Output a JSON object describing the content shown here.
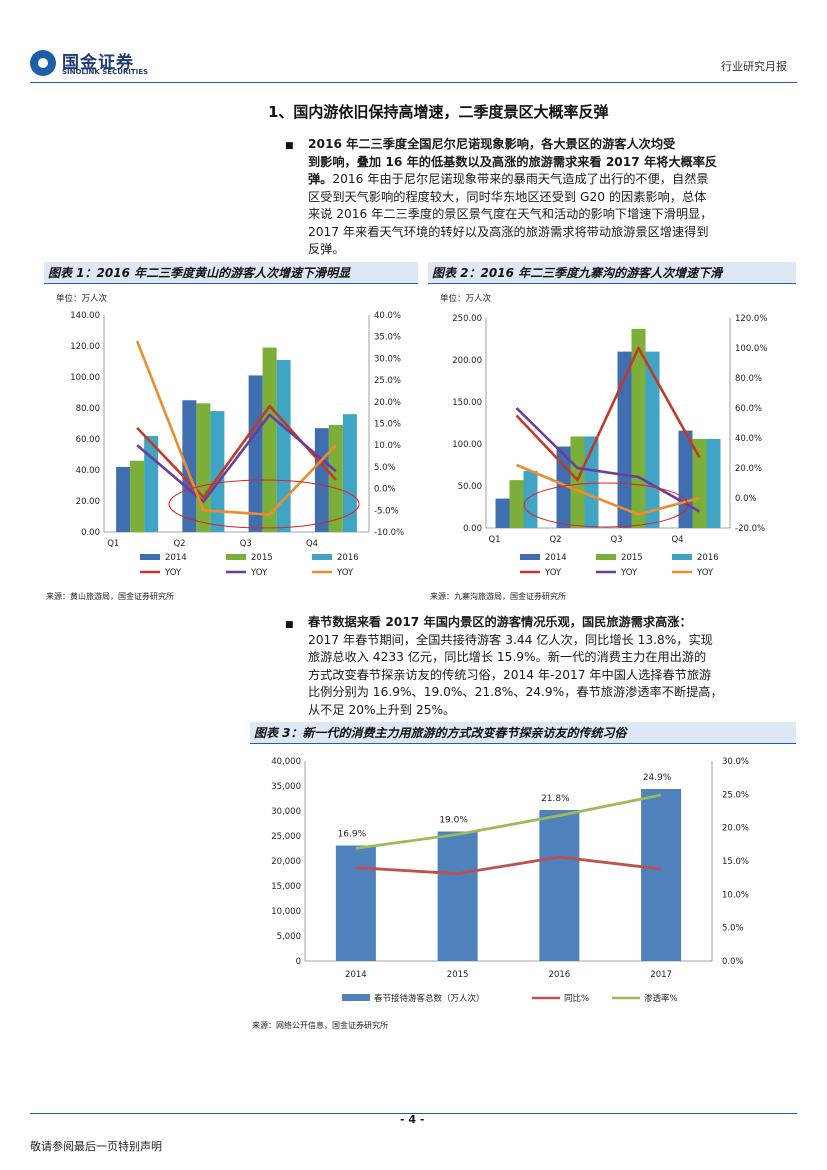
{
  "header": {
    "company_cn": "国金证券",
    "company_en": "SINOLINK SECURITIES",
    "report_type": "行业研究月报",
    "brand_color": "#1f5fa8"
  },
  "section_title": "1、国内游依旧保持高增速，二季度景区大概率反弹",
  "bullet_glyph": "■",
  "para1": {
    "lines_bold": [
      "2016 年二三季度全国尼尔尼诺现象影响，各大景区的游客人次均受",
      "到影响，叠加 16 年的低基数以及高涨的旅游需求来看 2017 年将大概率反",
      "弹。"
    ],
    "lines": [
      "2016 年由于尼尔尼诺现象带来的暴雨天气造成了出行的不便，自然景",
      "区受到天气影响的程度较大，同时华东地区还受到 G20 的因素影响，总体",
      "来说 2016 年二三季度的景区景气度在天气和活动的影响下增速下滑明显，",
      "2017 年来看天气环境的转好以及高涨的旅游需求将带动旅游景区增速得到",
      "反弹。"
    ]
  },
  "fig1": {
    "title": "图表 1：2016 年二三季度黄山的游客人次增速下滑明显",
    "source": "来源：黄山旅游局，国金证券研究所"
  },
  "fig2": {
    "title": "图表 2：2016 年二三季度九寨沟的游客人次增速下滑",
    "source": "来源：九寨沟旅游局，国金证券研究所"
  },
  "para2": {
    "lead": "春节数据来看 2017 年国内景区的游客情况乐观，国民旅游需求高涨：",
    "lines": [
      "2017 年春节期间，全国共接待游客 3.44 亿人次，同比增长 13.8%，实现",
      "旅游总收入 4233 亿元，同比增长 15.9%。新一代的消费主力在用出游的",
      "方式改变春节探亲访友的传统习俗，2014 年-2017 年中国人选择春节旅游",
      "比例分别为 16.9%、19.0%、21.8%、24.9%，春节旅游渗透率不断提高，",
      "从不足 20%上升到 25%。"
    ]
  },
  "fig3": {
    "title": "图表 3：新一代的消费主力用旅游的方式改变春节探亲访友的传统习俗",
    "source": "来源：网络公开信息，国金证券研究所"
  },
  "chart_data": [
    {
      "type": "bar",
      "id": "huangshan",
      "unit_label": "单位：万人次",
      "categories": [
        "Q1",
        "Q2",
        "Q3",
        "Q4"
      ],
      "ylim": [
        0,
        140
      ],
      "y_ticks": [
        "0.00",
        "20.00",
        "40.00",
        "60.00",
        "80.00",
        "100.00",
        "120.00",
        "140.00"
      ],
      "y2lim": [
        -10,
        40
      ],
      "y2_ticks": [
        "-10.0%",
        "-5.0%",
        "0.0%",
        "5.0%",
        "10.0%",
        "15.0%",
        "20.0%",
        "25.0%",
        "30.0%",
        "35.0%",
        "40.0%"
      ],
      "series": [
        {
          "name": "2014",
          "kind": "bar",
          "color": "#3f6fb1",
          "values": [
            42,
            85,
            101,
            67
          ]
        },
        {
          "name": "2015",
          "kind": "bar",
          "color": "#7cae3a",
          "values": [
            46,
            83,
            119,
            69
          ]
        },
        {
          "name": "2016",
          "kind": "bar",
          "color": "#40a4c4",
          "values": [
            62,
            78,
            111,
            76
          ]
        },
        {
          "name": "YOY",
          "kind": "line",
          "color": "#c0392b",
          "values": [
            14,
            -2,
            19,
            2
          ]
        },
        {
          "name": "YOY",
          "kind": "line",
          "color": "#6a3d9a",
          "values": [
            10,
            -3,
            17,
            4
          ]
        },
        {
          "name": "YOY",
          "kind": "line",
          "color": "#ee8b2d",
          "values": [
            34,
            -5,
            -6,
            10
          ]
        }
      ],
      "legend": "bottom",
      "highlight": "red ellipse"
    },
    {
      "type": "bar",
      "id": "jiuzhaigou",
      "unit_label": "单位：万人次",
      "categories": [
        "Q1",
        "Q2",
        "Q3",
        "Q4"
      ],
      "ylim": [
        0,
        250
      ],
      "y_ticks": [
        "0.00",
        "50.00",
        "100.00",
        "150.00",
        "200.00",
        "250.00"
      ],
      "y2lim": [
        -20,
        120
      ],
      "y2_ticks": [
        "-20.0%",
        "0.0%",
        "20.0%",
        "40.0%",
        "60.0%",
        "80.0%",
        "100.0%",
        "120.0%"
      ],
      "series": [
        {
          "name": "2014",
          "kind": "bar",
          "color": "#3f6fb1",
          "values": [
            35,
            97,
            210,
            116
          ]
        },
        {
          "name": "2015",
          "kind": "bar",
          "color": "#7cae3a",
          "values": [
            57,
            109,
            237,
            106
          ]
        },
        {
          "name": "2016",
          "kind": "bar",
          "color": "#40a4c4",
          "values": [
            68,
            109,
            210,
            106
          ]
        },
        {
          "name": "YOY",
          "kind": "line",
          "color": "#c0392b",
          "values": [
            55,
            12,
            100,
            27
          ]
        },
        {
          "name": "YOY",
          "kind": "line",
          "color": "#6a3d9a",
          "values": [
            60,
            20,
            14,
            -9
          ]
        },
        {
          "name": "YOY",
          "kind": "line",
          "color": "#ee8b2d",
          "values": [
            22,
            5,
            -11,
            0
          ]
        }
      ],
      "legend": "bottom",
      "highlight": "red ellipse"
    },
    {
      "type": "bar",
      "id": "spring_festival",
      "categories": [
        "2014",
        "2015",
        "2016",
        "2017"
      ],
      "ylim": [
        0,
        40000
      ],
      "y_ticks": [
        "0",
        "5,000",
        "10,000",
        "15,000",
        "20,000",
        "25,000",
        "30,000",
        "35,000",
        "40,000"
      ],
      "y2lim": [
        0,
        30
      ],
      "y2_ticks": [
        "0.0%",
        "5.0%",
        "10.0%",
        "15.0%",
        "20.0%",
        "25.0%",
        "30.0%"
      ],
      "series": [
        {
          "name": "春节接待游客总数（万人次）",
          "kind": "bar",
          "color": "#4f81bd",
          "values": [
            23100,
            25900,
            30200,
            34400
          ]
        },
        {
          "name": "同比%",
          "kind": "line",
          "color": "#c0504d",
          "values": [
            14.0,
            13.1,
            15.6,
            13.8
          ]
        },
        {
          "name": "渗透率%",
          "kind": "line",
          "color": "#9bbb59",
          "values": [
            16.9,
            19.0,
            21.8,
            24.9
          ]
        }
      ],
      "data_labels": [
        "16.9%",
        "19.0%",
        "21.8%",
        "24.9%"
      ],
      "legend": "bottom"
    }
  ],
  "footer": {
    "page_number": "- 4 -",
    "disclaimer": "敬请参阅最后一页特别声明"
  }
}
